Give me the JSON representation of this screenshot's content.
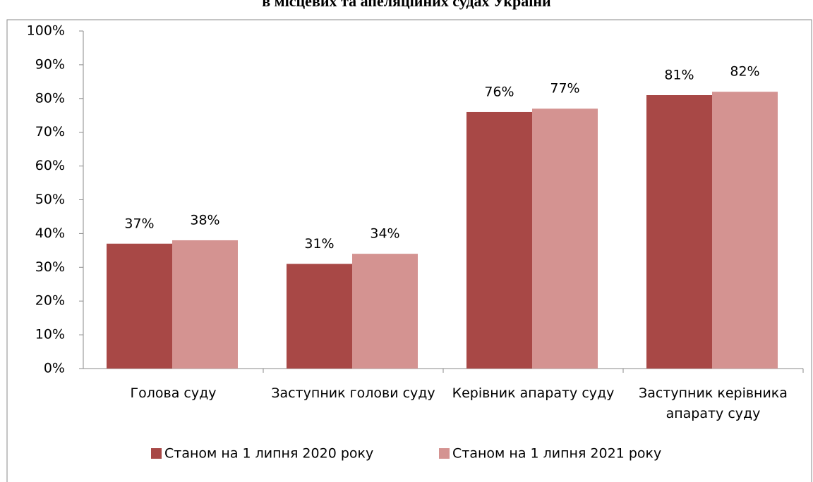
{
  "chart_data": {
    "type": "bar",
    "title": "в місцевих та апеляційних судах України",
    "categories": [
      "Голова суду",
      "Заступник голови суду",
      "Керівник апарату суду",
      "Заступник керівника апарату  суду"
    ],
    "series": [
      {
        "name": "Станом на 1 липня 2020 року",
        "color": "#a84846",
        "values": [
          37,
          31,
          76,
          81
        ],
        "value_labels": [
          "37%",
          "31%",
          "76%",
          "81%"
        ]
      },
      {
        "name": "Станом на 1 липня 2021 року",
        "color": "#d49391",
        "values": [
          38,
          34,
          77,
          82
        ],
        "value_labels": [
          "38%",
          "34%",
          "77%",
          "82%"
        ]
      }
    ],
    "ylim": [
      0,
      100
    ],
    "yticks": [
      {
        "value": 0,
        "label": "0%"
      },
      {
        "value": 10,
        "label": "10%"
      },
      {
        "value": 20,
        "label": "20%"
      },
      {
        "value": 30,
        "label": "30%"
      },
      {
        "value": 40,
        "label": "40%"
      },
      {
        "value": 50,
        "label": "50%"
      },
      {
        "value": 60,
        "label": "60%"
      },
      {
        "value": 70,
        "label": "70%"
      },
      {
        "value": 80,
        "label": "80%"
      },
      {
        "value": 90,
        "label": "90%"
      },
      {
        "value": 100,
        "label": "100%"
      }
    ],
    "legend": "bottom"
  }
}
